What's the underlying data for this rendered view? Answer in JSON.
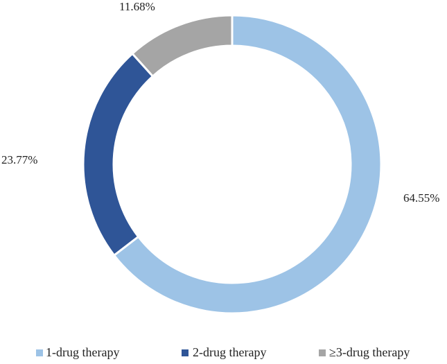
{
  "chart_data": {
    "type": "pie",
    "style": "donut",
    "title": "",
    "legend_position": "bottom",
    "slices": [
      {
        "name": "1-drug therapy",
        "value": 64.55,
        "label": "64.55%",
        "color": "#9dc3e6"
      },
      {
        "name": "2-drug therapy",
        "value": 23.77,
        "label": "23.77%",
        "color": "#2f5597"
      },
      {
        "name": "≥3-drug therapy",
        "value": 11.68,
        "label": "11.68%",
        "color": "#a5a5a5"
      }
    ]
  }
}
